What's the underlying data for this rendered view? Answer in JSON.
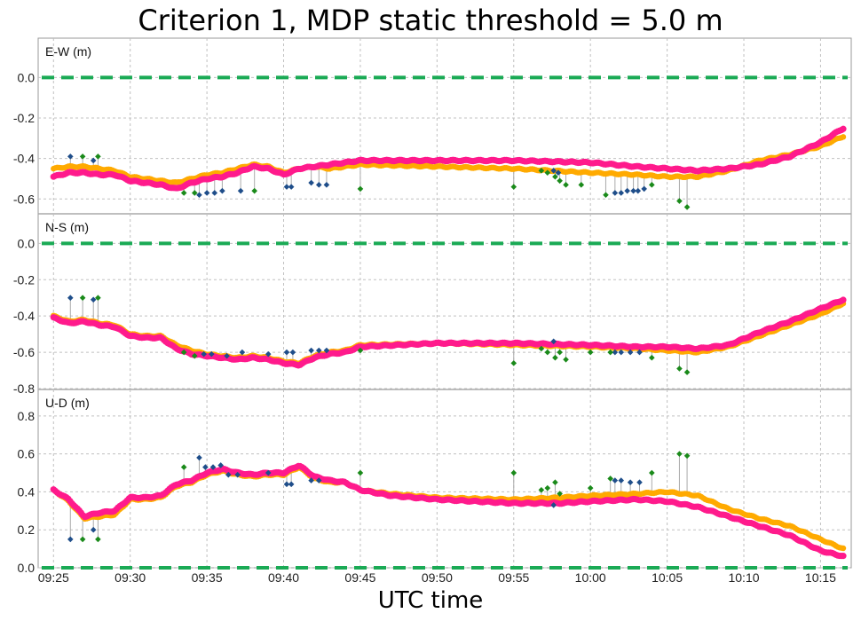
{
  "title": "Criterion 1, MDP static threshold =  5.0 m",
  "xlabel": "UTC time",
  "colors": {
    "pink": "#ff1a8c",
    "orange": "#ffaa00",
    "dark_blue": "#1f4e8a",
    "green": "#1a8a1a",
    "threshold": "#1aaa55",
    "spike": "#aaaaaa",
    "grid": "#c0c0c0"
  },
  "chart_data": {
    "type": "scatter",
    "x_unit": "minutes since 09:25",
    "xlim": [
      -1,
      52
    ],
    "x_ticks": [
      0,
      5,
      10,
      15,
      20,
      25,
      30,
      35,
      40,
      45,
      50
    ],
    "x_tick_labels": [
      "09:25",
      "09:30",
      "09:35",
      "09:40",
      "09:45",
      "09:50",
      "09:55",
      "10:00",
      "10:05",
      "10:10",
      "10:15"
    ],
    "panels": [
      {
        "label": "E-W (m)",
        "ylim": [
          -0.66,
          0.12
        ],
        "y_ticks": [
          0.0,
          -0.2,
          -0.4,
          -0.6
        ],
        "y_tick_labels": [
          "0.0",
          "-0.2",
          "-0.4",
          "-0.6"
        ],
        "threshold_y": 0.0,
        "pink": [
          [
            0,
            -0.49
          ],
          [
            1,
            -0.47
          ],
          [
            2,
            -0.47
          ],
          [
            3,
            -0.48
          ],
          [
            4,
            -0.48
          ],
          [
            5,
            -0.51
          ],
          [
            6,
            -0.52
          ],
          [
            7,
            -0.53
          ],
          [
            8,
            -0.55
          ],
          [
            9,
            -0.52
          ],
          [
            10,
            -0.5
          ],
          [
            11,
            -0.49
          ],
          [
            12,
            -0.47
          ],
          [
            13,
            -0.44
          ],
          [
            14,
            -0.45
          ],
          [
            15,
            -0.48
          ],
          [
            16,
            -0.45
          ],
          [
            17,
            -0.44
          ],
          [
            18,
            -0.43
          ],
          [
            19,
            -0.42
          ],
          [
            20,
            -0.41
          ],
          [
            25,
            -0.41
          ],
          [
            30,
            -0.41
          ],
          [
            35,
            -0.42
          ],
          [
            38,
            -0.44
          ],
          [
            40,
            -0.45
          ],
          [
            42,
            -0.46
          ],
          [
            44,
            -0.45
          ],
          [
            46,
            -0.43
          ],
          [
            48,
            -0.39
          ],
          [
            50,
            -0.32
          ],
          [
            51.5,
            -0.25
          ]
        ],
        "orange": [
          [
            0,
            -0.45
          ],
          [
            1,
            -0.44
          ],
          [
            2,
            -0.44
          ],
          [
            3,
            -0.45
          ],
          [
            4,
            -0.46
          ],
          [
            5,
            -0.49
          ],
          [
            6,
            -0.5
          ],
          [
            7,
            -0.51
          ],
          [
            8,
            -0.52
          ],
          [
            9,
            -0.5
          ],
          [
            10,
            -0.48
          ],
          [
            11,
            -0.47
          ],
          [
            12,
            -0.45
          ],
          [
            13,
            -0.43
          ],
          [
            14,
            -0.44
          ],
          [
            15,
            -0.47
          ],
          [
            16,
            -0.45
          ],
          [
            17,
            -0.44
          ],
          [
            18,
            -0.45
          ],
          [
            19,
            -0.44
          ],
          [
            20,
            -0.43
          ],
          [
            25,
            -0.44
          ],
          [
            30,
            -0.45
          ],
          [
            35,
            -0.47
          ],
          [
            38,
            -0.48
          ],
          [
            40,
            -0.49
          ],
          [
            42,
            -0.49
          ],
          [
            44,
            -0.46
          ],
          [
            46,
            -0.41
          ],
          [
            48,
            -0.38
          ],
          [
            50,
            -0.34
          ],
          [
            51.5,
            -0.29
          ]
        ],
        "outliers_blue": [
          [
            1.1,
            -0.39
          ],
          [
            2.6,
            -0.41
          ],
          [
            9.5,
            -0.58
          ],
          [
            10.0,
            -0.57
          ],
          [
            10.5,
            -0.57
          ],
          [
            11.0,
            -0.56
          ],
          [
            12.2,
            -0.56
          ],
          [
            15.2,
            -0.54
          ],
          [
            15.5,
            -0.54
          ],
          [
            16.8,
            -0.52
          ],
          [
            17.3,
            -0.53
          ],
          [
            17.8,
            -0.53
          ],
          [
            32.6,
            -0.46
          ],
          [
            32.9,
            -0.47
          ],
          [
            36.6,
            -0.57
          ],
          [
            37.0,
            -0.57
          ],
          [
            37.4,
            -0.56
          ],
          [
            37.8,
            -0.56
          ],
          [
            38.1,
            -0.56
          ],
          [
            38.5,
            -0.55
          ]
        ],
        "outliers_green": [
          [
            1.9,
            -0.39
          ],
          [
            2.9,
            -0.39
          ],
          [
            8.5,
            -0.57
          ],
          [
            9.2,
            -0.57
          ],
          [
            13.1,
            -0.56
          ],
          [
            20.0,
            -0.55
          ],
          [
            30.0,
            -0.54
          ],
          [
            31.8,
            -0.46
          ],
          [
            32.2,
            -0.47
          ],
          [
            32.7,
            -0.49
          ],
          [
            33.0,
            -0.51
          ],
          [
            33.4,
            -0.53
          ],
          [
            34.4,
            -0.53
          ],
          [
            36.0,
            -0.58
          ],
          [
            39.0,
            -0.53
          ],
          [
            40.8,
            -0.61
          ],
          [
            41.3,
            -0.64
          ]
        ]
      },
      {
        "label": "N-S (m)",
        "ylim": [
          -0.8,
          0.08
        ],
        "y_ticks": [
          0.0,
          -0.2,
          -0.4,
          -0.6,
          -0.8
        ],
        "y_tick_labels": [
          "0.0",
          "-0.2",
          "-0.4",
          "-0.6",
          "-0.8"
        ],
        "threshold_y": 0.0,
        "pink": [
          [
            0,
            -0.41
          ],
          [
            1,
            -0.44
          ],
          [
            2,
            -0.43
          ],
          [
            3,
            -0.45
          ],
          [
            4,
            -0.46
          ],
          [
            5,
            -0.51
          ],
          [
            6,
            -0.52
          ],
          [
            7,
            -0.52
          ],
          [
            8,
            -0.58
          ],
          [
            9,
            -0.61
          ],
          [
            10,
            -0.62
          ],
          [
            11,
            -0.63
          ],
          [
            12,
            -0.64
          ],
          [
            13,
            -0.63
          ],
          [
            14,
            -0.64
          ],
          [
            15,
            -0.66
          ],
          [
            16,
            -0.67
          ],
          [
            17,
            -0.63
          ],
          [
            18,
            -0.61
          ],
          [
            19,
            -0.6
          ],
          [
            20,
            -0.57
          ],
          [
            25,
            -0.55
          ],
          [
            30,
            -0.55
          ],
          [
            35,
            -0.56
          ],
          [
            38,
            -0.57
          ],
          [
            40,
            -0.57
          ],
          [
            42,
            -0.58
          ],
          [
            44,
            -0.56
          ],
          [
            46,
            -0.49
          ],
          [
            48,
            -0.43
          ],
          [
            50,
            -0.36
          ],
          [
            51.5,
            -0.31
          ]
        ],
        "orange": [
          [
            0,
            -0.4
          ],
          [
            1,
            -0.43
          ],
          [
            2,
            -0.42
          ],
          [
            3,
            -0.44
          ],
          [
            4,
            -0.45
          ],
          [
            5,
            -0.5
          ],
          [
            6,
            -0.51
          ],
          [
            7,
            -0.51
          ],
          [
            8,
            -0.56
          ],
          [
            9,
            -0.59
          ],
          [
            10,
            -0.61
          ],
          [
            11,
            -0.62
          ],
          [
            12,
            -0.63
          ],
          [
            13,
            -0.62
          ],
          [
            14,
            -0.63
          ],
          [
            15,
            -0.65
          ],
          [
            16,
            -0.66
          ],
          [
            17,
            -0.62
          ],
          [
            18,
            -0.6
          ],
          [
            19,
            -0.59
          ],
          [
            20,
            -0.56
          ],
          [
            25,
            -0.55
          ],
          [
            30,
            -0.56
          ],
          [
            35,
            -0.57
          ],
          [
            38,
            -0.58
          ],
          [
            40,
            -0.59
          ],
          [
            42,
            -0.6
          ],
          [
            44,
            -0.57
          ],
          [
            46,
            -0.51
          ],
          [
            48,
            -0.45
          ],
          [
            50,
            -0.39
          ],
          [
            51.5,
            -0.33
          ]
        ],
        "outliers_blue": [
          [
            1.1,
            -0.3
          ],
          [
            2.6,
            -0.31
          ],
          [
            9.8,
            -0.61
          ],
          [
            10.3,
            -0.61
          ],
          [
            11.3,
            -0.62
          ],
          [
            12.3,
            -0.6
          ],
          [
            14.0,
            -0.61
          ],
          [
            15.2,
            -0.6
          ],
          [
            15.6,
            -0.6
          ],
          [
            16.8,
            -0.59
          ],
          [
            17.3,
            -0.59
          ],
          [
            17.8,
            -0.59
          ],
          [
            32.6,
            -0.54
          ],
          [
            36.6,
            -0.6
          ],
          [
            37.0,
            -0.6
          ],
          [
            37.6,
            -0.6
          ],
          [
            38.2,
            -0.6
          ]
        ],
        "outliers_green": [
          [
            1.9,
            -0.3
          ],
          [
            2.9,
            -0.3
          ],
          [
            8.5,
            -0.6
          ],
          [
            9.2,
            -0.62
          ],
          [
            20.0,
            -0.59
          ],
          [
            30.0,
            -0.66
          ],
          [
            31.8,
            -0.58
          ],
          [
            32.2,
            -0.6
          ],
          [
            32.7,
            -0.63
          ],
          [
            33.0,
            -0.6
          ],
          [
            33.4,
            -0.64
          ],
          [
            35.0,
            -0.6
          ],
          [
            36.3,
            -0.6
          ],
          [
            39.0,
            -0.63
          ],
          [
            40.8,
            -0.69
          ],
          [
            41.3,
            -0.71
          ]
        ]
      },
      {
        "label": "U-D (m)",
        "ylim": [
          0.0,
          0.86
        ],
        "y_ticks": [
          0.8,
          0.6,
          0.4,
          0.2,
          0.0
        ],
        "y_tick_labels": [
          "0.8",
          "0.6",
          "0.4",
          "0.2",
          "0.0"
        ],
        "threshold_y": 0.0,
        "pink": [
          [
            0,
            0.41
          ],
          [
            1,
            0.36
          ],
          [
            2,
            0.27
          ],
          [
            3,
            0.29
          ],
          [
            4,
            0.3
          ],
          [
            5,
            0.37
          ],
          [
            6,
            0.37
          ],
          [
            7,
            0.38
          ],
          [
            8,
            0.44
          ],
          [
            9,
            0.46
          ],
          [
            10,
            0.5
          ],
          [
            11,
            0.52
          ],
          [
            12,
            0.5
          ],
          [
            13,
            0.49
          ],
          [
            14,
            0.5
          ],
          [
            15,
            0.5
          ],
          [
            16,
            0.54
          ],
          [
            17,
            0.48
          ],
          [
            18,
            0.46
          ],
          [
            19,
            0.45
          ],
          [
            20,
            0.41
          ],
          [
            22,
            0.38
          ],
          [
            25,
            0.36
          ],
          [
            30,
            0.34
          ],
          [
            33,
            0.34
          ],
          [
            35,
            0.35
          ],
          [
            38,
            0.36
          ],
          [
            40,
            0.35
          ],
          [
            42,
            0.32
          ],
          [
            44,
            0.27
          ],
          [
            46,
            0.22
          ],
          [
            48,
            0.17
          ],
          [
            50,
            0.09
          ],
          [
            51.5,
            0.06
          ]
        ],
        "orange": [
          [
            0,
            0.41
          ],
          [
            1,
            0.35
          ],
          [
            2,
            0.26
          ],
          [
            3,
            0.27
          ],
          [
            4,
            0.28
          ],
          [
            5,
            0.36
          ],
          [
            6,
            0.36
          ],
          [
            7,
            0.37
          ],
          [
            8,
            0.43
          ],
          [
            9,
            0.45
          ],
          [
            10,
            0.49
          ],
          [
            11,
            0.51
          ],
          [
            12,
            0.49
          ],
          [
            13,
            0.48
          ],
          [
            14,
            0.49
          ],
          [
            15,
            0.49
          ],
          [
            16,
            0.53
          ],
          [
            17,
            0.47
          ],
          [
            18,
            0.45
          ],
          [
            19,
            0.45
          ],
          [
            20,
            0.41
          ],
          [
            22,
            0.39
          ],
          [
            25,
            0.37
          ],
          [
            30,
            0.36
          ],
          [
            33,
            0.37
          ],
          [
            35,
            0.38
          ],
          [
            38,
            0.39
          ],
          [
            40,
            0.4
          ],
          [
            42,
            0.38
          ],
          [
            44,
            0.31
          ],
          [
            46,
            0.26
          ],
          [
            48,
            0.22
          ],
          [
            50,
            0.15
          ],
          [
            51.5,
            0.1
          ]
        ],
        "outliers_blue": [
          [
            1.1,
            0.15
          ],
          [
            2.6,
            0.2
          ],
          [
            9.5,
            0.58
          ],
          [
            9.9,
            0.53
          ],
          [
            10.4,
            0.53
          ],
          [
            10.9,
            0.54
          ],
          [
            11.4,
            0.49
          ],
          [
            12.0,
            0.49
          ],
          [
            14.0,
            0.5
          ],
          [
            15.2,
            0.44
          ],
          [
            15.5,
            0.44
          ],
          [
            16.8,
            0.46
          ],
          [
            17.3,
            0.46
          ],
          [
            32.6,
            0.33
          ],
          [
            36.6,
            0.46
          ],
          [
            37.0,
            0.46
          ],
          [
            37.6,
            0.45
          ],
          [
            38.2,
            0.45
          ]
        ],
        "outliers_green": [
          [
            1.9,
            0.15
          ],
          [
            2.9,
            0.15
          ],
          [
            8.5,
            0.53
          ],
          [
            20.0,
            0.5
          ],
          [
            30.0,
            0.5
          ],
          [
            31.8,
            0.41
          ],
          [
            32.2,
            0.42
          ],
          [
            32.7,
            0.45
          ],
          [
            33.0,
            0.39
          ],
          [
            35.0,
            0.42
          ],
          [
            36.3,
            0.47
          ],
          [
            39.0,
            0.5
          ],
          [
            40.8,
            0.6
          ],
          [
            41.3,
            0.59
          ]
        ]
      }
    ]
  }
}
